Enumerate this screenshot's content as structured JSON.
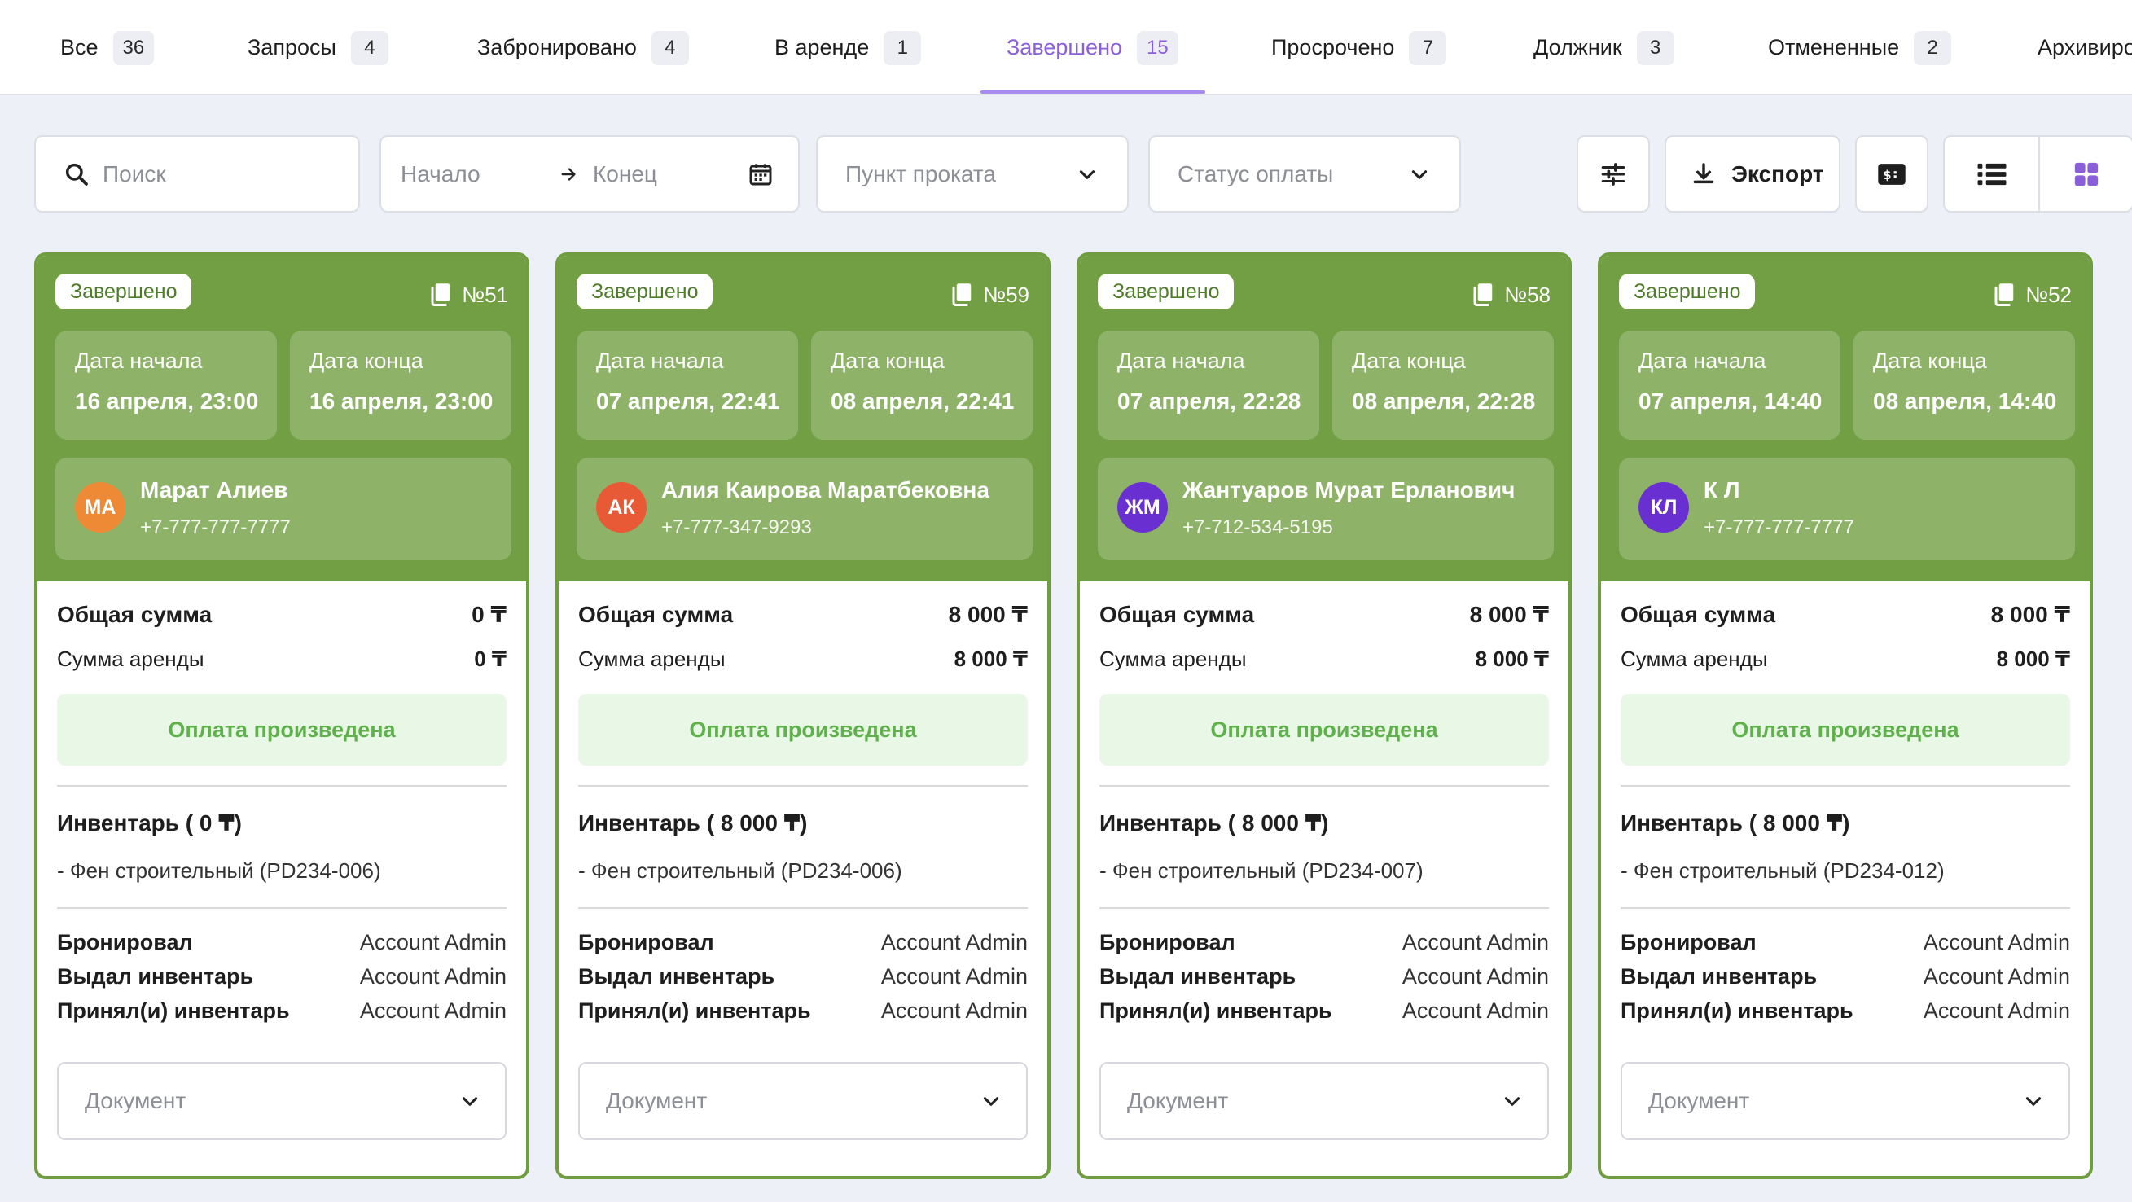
{
  "tabs": [
    {
      "label": "Все",
      "count": "36"
    },
    {
      "label": "Запросы",
      "count": "4"
    },
    {
      "label": "Забронировано",
      "count": "4"
    },
    {
      "label": "В аренде",
      "count": "1"
    },
    {
      "label": "Завершено",
      "count": "15"
    },
    {
      "label": "Просрочено",
      "count": "7"
    },
    {
      "label": "Должник",
      "count": "3"
    },
    {
      "label": "Отмененные",
      "count": "2"
    },
    {
      "label": "Архивиро",
      "count": ""
    }
  ],
  "active_tab": "Завершено",
  "toolbar": {
    "search_placeholder": "Поиск",
    "date_start_placeholder": "Начало",
    "date_end_placeholder": "Конец",
    "rental_point_placeholder": "Пункт проката",
    "payment_status_placeholder": "Статус оплаты",
    "export_label": "Экспорт"
  },
  "colors": {
    "accent": "#8a5fd9",
    "card_green": "#739f44",
    "paid_text": "#5fb24b",
    "paid_bg": "#e8f7e6"
  },
  "labels": {
    "start_date": "Дата начала",
    "end_date": "Дата конца",
    "total": "Общая сумма",
    "rent": "Сумма аренды",
    "paid": "Оплата произведена",
    "booked_by": "Бронировал",
    "issued_by": "Выдал инвентарь",
    "received_by": "Принял(и) инвентарь",
    "document_placeholder": "Документ"
  },
  "cards": [
    {
      "status": "Завершено",
      "number": "№51",
      "start": "16 апреля, 23:00",
      "end": "16 апреля, 23:00",
      "initials": "МА",
      "avatar_color": "#ee8a35",
      "name": "Марат Алиев",
      "phone": "+7-777-777-7777",
      "total": "0 ₸",
      "rent": "0 ₸",
      "inventory_title": "Инвентарь ( 0 ₸)",
      "inventory_item": "- Фен строительный (PD234-006)",
      "booked_by": "Account Admin",
      "issued_by": "Account Admin",
      "received_by": "Account Admin"
    },
    {
      "status": "Завершено",
      "number": "№59",
      "start": "07 апреля, 22:41",
      "end": "08 апреля, 22:41",
      "initials": "АК",
      "avatar_color": "#e85a35",
      "name": "Алия Каирова Маратбековна",
      "phone": "+7-777-347-9293",
      "total": "8 000 ₸",
      "rent": "8 000 ₸",
      "inventory_title": "Инвентарь ( 8 000 ₸)",
      "inventory_item": "- Фен строительный (PD234-006)",
      "booked_by": "Account Admin",
      "issued_by": "Account Admin",
      "received_by": "Account Admin"
    },
    {
      "status": "Завершено",
      "number": "№58",
      "start": "07 апреля, 22:28",
      "end": "08 апреля, 22:28",
      "initials": "ЖМ",
      "avatar_color": "#6a2fd1",
      "name": "Жантуаров Мурат Ерланович",
      "phone": "+7-712-534-5195",
      "total": "8 000 ₸",
      "rent": "8 000 ₸",
      "inventory_title": "Инвентарь ( 8 000 ₸)",
      "inventory_item": "- Фен строительный (PD234-007)",
      "booked_by": "Account Admin",
      "issued_by": "Account Admin",
      "received_by": "Account Admin"
    },
    {
      "status": "Завершено",
      "number": "№52",
      "start": "07 апреля, 14:40",
      "end": "08 апреля, 14:40",
      "initials": "КЛ",
      "avatar_color": "#6a2fd1",
      "name": "К Л",
      "phone": "+7-777-777-7777",
      "total": "8 000 ₸",
      "rent": "8 000 ₸",
      "inventory_title": "Инвентарь ( 8 000 ₸)",
      "inventory_item": "- Фен строительный (PD234-012)",
      "booked_by": "Account Admin",
      "issued_by": "Account Admin",
      "received_by": "Account Admin"
    }
  ]
}
